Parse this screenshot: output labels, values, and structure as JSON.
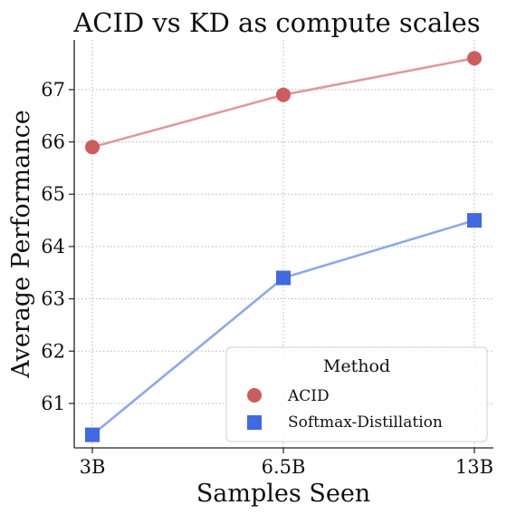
{
  "chart_data": {
    "type": "line",
    "title": "ACID vs KD as compute scales",
    "xlabel": "Samples Seen",
    "ylabel": "Average Performance",
    "categories": [
      "3B",
      "6.5B",
      "13B"
    ],
    "yticks": [
      "61",
      "62",
      "63",
      "64",
      "65",
      "66",
      "67"
    ],
    "ylim": [
      60.15,
      67.95
    ],
    "grid": true,
    "legend": {
      "title": "Method",
      "placement": "lower-right"
    },
    "series": [
      {
        "name": "ACID",
        "values": [
          65.9,
          66.9,
          67.6
        ],
        "marker": "circle",
        "marker_color": "#cd5c5c",
        "line_color": "#dd9b9b"
      },
      {
        "name": "Softmax-Distillation",
        "values": [
          60.4,
          63.4,
          64.5
        ],
        "marker": "square",
        "marker_color": "#4169e1",
        "line_color": "#8ea8e8"
      }
    ]
  }
}
